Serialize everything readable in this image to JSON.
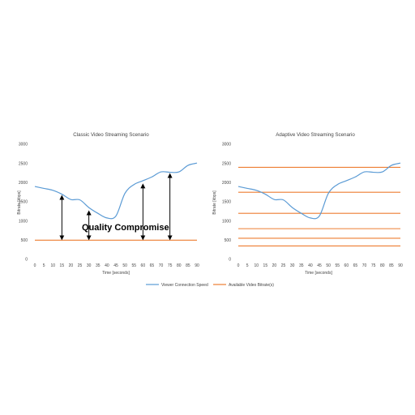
{
  "legend": {
    "entries": [
      {
        "label": "Viewer Connection Speed",
        "color": "#5b9bd5"
      },
      {
        "label": "Available Video Bitrate(s)",
        "color": "#ed7d31"
      }
    ]
  },
  "chart_data": [
    {
      "type": "line",
      "title": "Classic Video Streaming Scenario",
      "xlabel": "Time [seconds]",
      "ylabel": "Bitrate [kbps]",
      "x_ticks": [
        "0",
        "5",
        "10",
        "15",
        "20",
        "25",
        "30",
        "35",
        "40",
        "45",
        "50",
        "55",
        "60",
        "65",
        "70",
        "75",
        "80",
        "85",
        "90"
      ],
      "y_ticks": [
        "0",
        "500",
        "1000",
        "1500",
        "2000",
        "2500",
        "3000"
      ],
      "xlim": [
        0,
        90
      ],
      "ylim": [
        0,
        3000
      ],
      "grid": false,
      "connection_color": "#5b9bd5",
      "bitrate_color": "#ed7d31",
      "connection_speed": [
        [
          0,
          1900
        ],
        [
          5,
          1850
        ],
        [
          10,
          1800
        ],
        [
          15,
          1700
        ],
        [
          20,
          1560
        ],
        [
          25,
          1550
        ],
        [
          30,
          1350
        ],
        [
          35,
          1200
        ],
        [
          40,
          1080
        ],
        [
          45,
          1130
        ],
        [
          50,
          1720
        ],
        [
          55,
          1950
        ],
        [
          60,
          2050
        ],
        [
          65,
          2150
        ],
        [
          70,
          2280
        ],
        [
          75,
          2270
        ],
        [
          80,
          2280
        ],
        [
          85,
          2450
        ],
        [
          90,
          2510
        ]
      ],
      "bitrates": [
        500
      ],
      "annotation": "Quality Compromise",
      "arrows": [
        {
          "x": 15,
          "from": 500,
          "to": 1700
        },
        {
          "x": 30,
          "from": 500,
          "to": 1300
        },
        {
          "x": 60,
          "from": 500,
          "to": 2000
        },
        {
          "x": 75,
          "from": 500,
          "to": 2270
        }
      ]
    },
    {
      "type": "line",
      "title": "Adaptive Video Streaming Scenario",
      "xlabel": "Time [seconds]",
      "ylabel": "Bitrate [kbps]",
      "x_ticks": [
        "0",
        "5",
        "10",
        "15",
        "20",
        "25",
        "30",
        "35",
        "40",
        "45",
        "50",
        "55",
        "60",
        "65",
        "70",
        "75",
        "80",
        "85",
        "90"
      ],
      "y_ticks": [
        "0",
        "500",
        "1000",
        "1500",
        "2000",
        "2500",
        "3000"
      ],
      "xlim": [
        0,
        90
      ],
      "ylim": [
        0,
        3000
      ],
      "grid": false,
      "connection_color": "#5b9bd5",
      "bitrate_color": "#ed7d31",
      "connection_speed": [
        [
          0,
          1900
        ],
        [
          5,
          1850
        ],
        [
          10,
          1800
        ],
        [
          15,
          1700
        ],
        [
          20,
          1560
        ],
        [
          25,
          1550
        ],
        [
          30,
          1350
        ],
        [
          35,
          1200
        ],
        [
          40,
          1080
        ],
        [
          45,
          1130
        ],
        [
          50,
          1720
        ],
        [
          55,
          1950
        ],
        [
          60,
          2050
        ],
        [
          65,
          2150
        ],
        [
          70,
          2280
        ],
        [
          75,
          2270
        ],
        [
          80,
          2280
        ],
        [
          85,
          2450
        ],
        [
          90,
          2510
        ]
      ],
      "bitrates": [
        2400,
        1750,
        1200,
        800,
        550,
        350
      ]
    }
  ]
}
